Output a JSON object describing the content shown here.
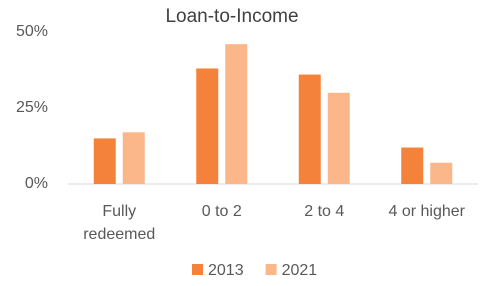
{
  "chart_data": {
    "type": "bar",
    "title": "Loan-to-Income",
    "categories": [
      "Fully redeemed",
      "0 to 2",
      "2 to 4",
      "4 or higher"
    ],
    "series": [
      {
        "name": "2013",
        "color": "#f5823a",
        "values": [
          15,
          38,
          36,
          12
        ]
      },
      {
        "name": "2021",
        "color": "#fbb68a",
        "values": [
          17,
          46,
          30,
          7
        ]
      }
    ],
    "ylim": [
      0,
      50
    ],
    "yticks": [
      {
        "value": 0,
        "label": "0%"
      },
      {
        "value": 25,
        "label": "25%"
      },
      {
        "value": 50,
        "label": "50%"
      }
    ],
    "grid": false,
    "legend": "bottom"
  }
}
